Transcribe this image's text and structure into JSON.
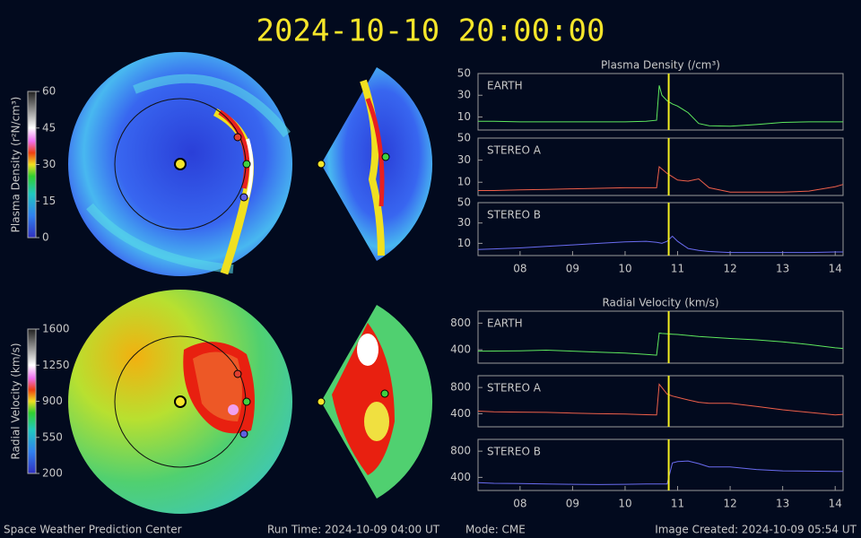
{
  "header": {
    "title": "2024-10-10 20:00:00"
  },
  "footer": {
    "left": "Space Weather Prediction Center",
    "run_time": "Run Time: 2024-10-09 04:00 UT",
    "mode": "Mode: CME",
    "created": "Image Created: 2024-10-09 05:54 UT"
  },
  "colorbars": [
    {
      "label": "Plasma Density (r²N/cm³)",
      "lim": [
        0,
        60
      ],
      "ticks": [
        0,
        15,
        30,
        45,
        60
      ]
    },
    {
      "label": "Radial Velocity (km/s)",
      "lim": [
        200,
        1600
      ],
      "ticks": [
        200,
        550,
        900,
        1250,
        1600
      ]
    }
  ],
  "chart_data": [
    {
      "type": "line",
      "title": "Plasma Density (/cm³)",
      "marker_x": 10.83,
      "x": [
        7.2,
        7.5,
        8,
        8.5,
        9,
        9.5,
        10,
        10.4,
        10.6,
        10.65,
        10.7,
        10.8,
        10.9,
        11,
        11.2,
        11.4,
        11.6,
        12,
        12.5,
        13,
        13.5,
        14,
        14.15
      ],
      "xlim": [
        7.2,
        14.15
      ],
      "ylim": [
        -2,
        50
      ],
      "yticks": [
        10,
        30,
        50
      ],
      "series": [
        {
          "name": "EARTH",
          "color": "#5ee85e",
          "values": [
            6,
            6,
            5.5,
            5.5,
            5.5,
            5.5,
            5.5,
            6,
            7,
            39,
            30,
            25,
            22,
            20,
            14,
            4,
            2,
            1.5,
            3,
            5,
            5.5,
            5.5,
            5.5
          ]
        }
      ]
    },
    {
      "type": "line",
      "marker_x": 10.83,
      "x": [
        7.2,
        7.5,
        8,
        8.5,
        9,
        9.5,
        10,
        10.4,
        10.6,
        10.65,
        10.7,
        10.8,
        10.9,
        11,
        11.2,
        11.4,
        11.6,
        12,
        12.5,
        13,
        13.5,
        14,
        14.15
      ],
      "xlim": [
        7.2,
        14.15
      ],
      "ylim": [
        -2,
        50
      ],
      "yticks": [
        10,
        30,
        50
      ],
      "series": [
        {
          "name": "STEREO A",
          "color": "#f0604a",
          "values": [
            2.5,
            2.5,
            3,
            3.5,
            4,
            4.5,
            5,
            5,
            5,
            24,
            22,
            18,
            15,
            12,
            11,
            13,
            5,
            1,
            1,
            1,
            2,
            6,
            8
          ]
        }
      ]
    },
    {
      "type": "line",
      "marker_x": 10.83,
      "x": [
        7.2,
        7.5,
        8,
        8.5,
        9,
        9.5,
        10,
        10.4,
        10.6,
        10.65,
        10.7,
        10.8,
        10.9,
        11,
        11.2,
        11.4,
        11.6,
        12,
        12.5,
        13,
        13.5,
        14,
        14.15
      ],
      "xlim": [
        7.2,
        14.15
      ],
      "ylim": [
        -2,
        50
      ],
      "yticks": [
        10,
        30,
        50
      ],
      "xticks": [
        {
          "value": 8,
          "label": "08"
        },
        {
          "value": 9,
          "label": "09"
        },
        {
          "value": 10,
          "label": "10"
        },
        {
          "value": 11,
          "label": "11"
        },
        {
          "value": 12,
          "label": "12"
        },
        {
          "value": 13,
          "label": "13"
        },
        {
          "value": 14,
          "label": "14"
        }
      ],
      "series": [
        {
          "name": "STEREO B",
          "color": "#6a6cf0",
          "values": [
            4,
            4.5,
            5.5,
            7,
            8.5,
            10,
            11.5,
            12,
            11,
            10.5,
            10,
            12,
            17,
            12,
            5,
            3,
            2,
            1,
            1,
            1,
            1,
            1.5,
            1.5
          ]
        }
      ]
    },
    {
      "type": "line",
      "title": "Radial Velocity (km/s)",
      "marker_x": 10.83,
      "x": [
        7.2,
        7.5,
        8,
        8.5,
        9,
        9.5,
        10,
        10.4,
        10.6,
        10.65,
        10.7,
        10.8,
        10.9,
        11,
        11.2,
        11.4,
        11.6,
        12,
        12.5,
        13,
        13.5,
        14,
        14.15
      ],
      "xlim": [
        7.2,
        14.15
      ],
      "ylim": [
        200,
        980
      ],
      "yticks": [
        400,
        800
      ],
      "series": [
        {
          "name": "EARTH",
          "color": "#5ee85e",
          "values": [
            380,
            382,
            385,
            395,
            380,
            365,
            350,
            330,
            320,
            650,
            645,
            640,
            635,
            630,
            615,
            600,
            590,
            570,
            550,
            520,
            480,
            430,
            420
          ]
        }
      ]
    },
    {
      "type": "line",
      "marker_x": 10.83,
      "x": [
        7.2,
        7.5,
        8,
        8.5,
        9,
        9.5,
        10,
        10.4,
        10.6,
        10.65,
        10.7,
        10.8,
        10.9,
        11,
        11.2,
        11.4,
        11.6,
        12,
        12.5,
        13,
        13.5,
        14,
        14.15
      ],
      "xlim": [
        7.2,
        14.15
      ],
      "ylim": [
        200,
        980
      ],
      "yticks": [
        400,
        800
      ],
      "series": [
        {
          "name": "STEREO A",
          "color": "#f0604a",
          "values": [
            440,
            430,
            425,
            420,
            410,
            400,
            395,
            385,
            380,
            850,
            800,
            700,
            670,
            650,
            610,
            575,
            560,
            560,
            510,
            460,
            420,
            380,
            390
          ]
        }
      ]
    },
    {
      "type": "line",
      "marker_x": 10.83,
      "x": [
        7.2,
        7.5,
        8,
        8.5,
        9,
        9.5,
        10,
        10.4,
        10.6,
        10.65,
        10.7,
        10.8,
        10.9,
        11,
        11.2,
        11.4,
        11.6,
        12,
        12.5,
        13,
        13.5,
        14,
        14.15
      ],
      "xlim": [
        7.2,
        14.15
      ],
      "ylim": [
        200,
        980
      ],
      "yticks": [
        400,
        800
      ],
      "xticks": [
        {
          "value": 8,
          "label": "08"
        },
        {
          "value": 9,
          "label": "09"
        },
        {
          "value": 10,
          "label": "10"
        },
        {
          "value": 11,
          "label": "11"
        },
        {
          "value": 12,
          "label": "12"
        },
        {
          "value": 13,
          "label": "13"
        },
        {
          "value": 14,
          "label": "14"
        }
      ],
      "series": [
        {
          "name": "STEREO B",
          "color": "#6a6cf0",
          "values": [
            320,
            310,
            305,
            300,
            295,
            290,
            295,
            300,
            300,
            300,
            300,
            300,
            620,
            640,
            650,
            610,
            560,
            560,
            520,
            500,
            495,
            490,
            490
          ]
        }
      ]
    }
  ]
}
